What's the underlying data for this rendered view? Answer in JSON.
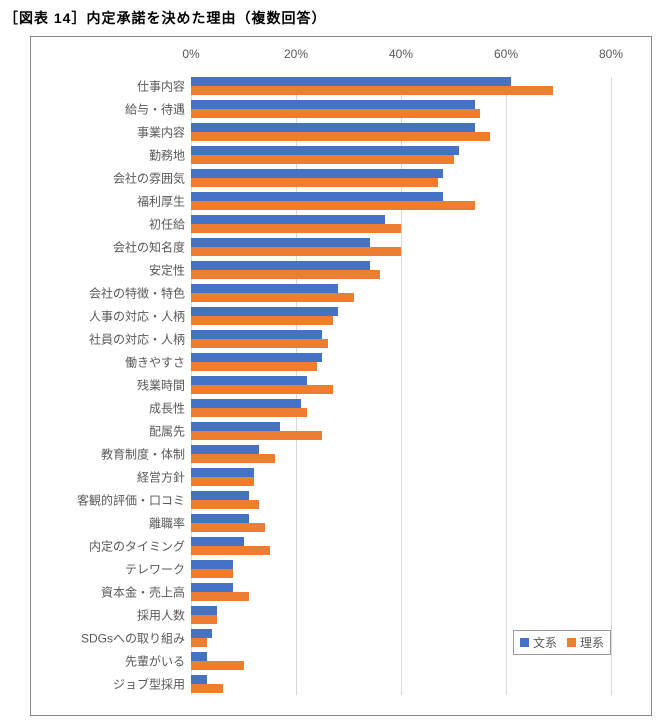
{
  "title": "［図表 14］内定承諾を決めた理由（複数回答）",
  "chart": {
    "type": "bar-horizontal-grouped",
    "xmax": 80,
    "xtick_step": 20,
    "xtick_format_suffix": "%",
    "background_color": "#ffffff",
    "grid_color": "#d9d9d9",
    "frame_color": "#888888",
    "tick_label_color": "#595959",
    "tick_fontsize": 12,
    "cat_fontsize": 12,
    "title_fontsize": 14,
    "bar_group_height": 18,
    "bar_gap_within": 0,
    "row_gap": 5,
    "series": [
      {
        "name": "文系",
        "color": "#4472c4"
      },
      {
        "name": "理系",
        "color": "#ed7d31"
      }
    ],
    "categories": [
      {
        "label": "仕事内容",
        "values": [
          61,
          69
        ]
      },
      {
        "label": "給与・待遇",
        "values": [
          54,
          55
        ]
      },
      {
        "label": "事業内容",
        "values": [
          54,
          57
        ]
      },
      {
        "label": "勤務地",
        "values": [
          51,
          50
        ]
      },
      {
        "label": "会社の雰囲気",
        "values": [
          48,
          47
        ]
      },
      {
        "label": "福利厚生",
        "values": [
          48,
          54
        ]
      },
      {
        "label": "初任給",
        "values": [
          37,
          40
        ]
      },
      {
        "label": "会社の知名度",
        "values": [
          34,
          40
        ]
      },
      {
        "label": "安定性",
        "values": [
          34,
          36
        ]
      },
      {
        "label": "会社の特徴・特色",
        "values": [
          28,
          31
        ]
      },
      {
        "label": "人事の対応・人柄",
        "values": [
          28,
          27
        ]
      },
      {
        "label": "社員の対応・人柄",
        "values": [
          25,
          26
        ]
      },
      {
        "label": "働きやすさ",
        "values": [
          25,
          24
        ]
      },
      {
        "label": "残業時間",
        "values": [
          22,
          27
        ]
      },
      {
        "label": "成長性",
        "values": [
          21,
          22
        ]
      },
      {
        "label": "配属先",
        "values": [
          17,
          25
        ]
      },
      {
        "label": "教育制度・体制",
        "values": [
          13,
          16
        ]
      },
      {
        "label": "経営方針",
        "values": [
          12,
          12
        ]
      },
      {
        "label": "客観的評価・口コミ",
        "values": [
          11,
          13
        ]
      },
      {
        "label": "離職率",
        "values": [
          11,
          14
        ]
      },
      {
        "label": "内定のタイミング",
        "values": [
          10,
          15
        ]
      },
      {
        "label": "テレワーク",
        "values": [
          8,
          8
        ]
      },
      {
        "label": "資本金・売上高",
        "values": [
          8,
          11
        ]
      },
      {
        "label": "採用人数",
        "values": [
          5,
          5
        ]
      },
      {
        "label": "SDGsへの取り組み",
        "values": [
          4,
          3
        ]
      },
      {
        "label": "先輩がいる",
        "values": [
          3,
          10
        ]
      },
      {
        "label": "ジョブ型採用",
        "values": [
          3,
          6
        ]
      }
    ],
    "legend_labels": [
      "文系",
      "理系"
    ]
  }
}
